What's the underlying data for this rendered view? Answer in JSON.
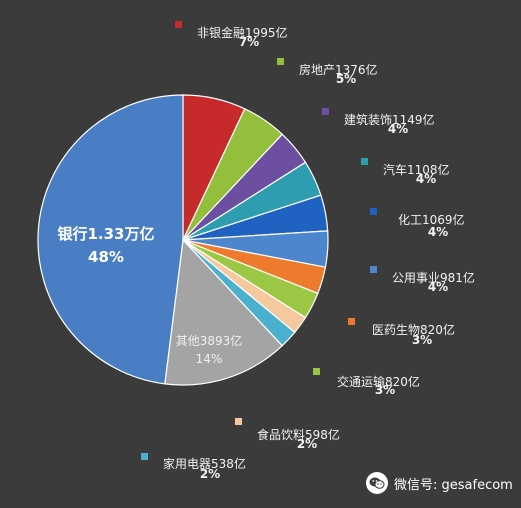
{
  "chart_data": {
    "type": "pie",
    "slices": [
      {
        "label": "银行1.33万亿",
        "pct_label": "48%",
        "value": 48,
        "color": "#4a7ec4"
      },
      {
        "label": "非银金融1995亿",
        "pct_label": "7%",
        "value": 7,
        "color": "#c72a2a"
      },
      {
        "label": "房地产1376亿",
        "pct_label": "5%",
        "value": 5,
        "color": "#93bf3c"
      },
      {
        "label": "建筑装饰1149亿",
        "pct_label": "4%",
        "value": 4,
        "color": "#6c4fa0"
      },
      {
        "label": "汽车1108亿",
        "pct_label": "4%",
        "value": 4,
        "color": "#2e9db0"
      },
      {
        "label": "化工1069亿",
        "pct_label": "4%",
        "value": 4,
        "color": "#1f62c2"
      },
      {
        "label": "公用事业981亿",
        "pct_label": "4%",
        "value": 4,
        "color": "#4d86cc"
      },
      {
        "label": "医药生物820亿",
        "pct_label": "3%",
        "value": 3,
        "color": "#ee7a2e"
      },
      {
        "label": "交通运输820亿",
        "pct_label": "3%",
        "value": 3,
        "color": "#9cc744"
      },
      {
        "label": "食品饮料598亿",
        "pct_label": "2%",
        "value": 2,
        "color": "#f6c8a0"
      },
      {
        "label": "家用电器538亿",
        "pct_label": "2%",
        "value": 2,
        "color": "#4bb0ce"
      },
      {
        "label": "其他3893亿",
        "pct_label": "14%",
        "value": 14,
        "color": "#a4a4a4"
      }
    ]
  },
  "watermark": {
    "text": "微信号: gesafecom",
    "icon": "wechat-icon"
  }
}
